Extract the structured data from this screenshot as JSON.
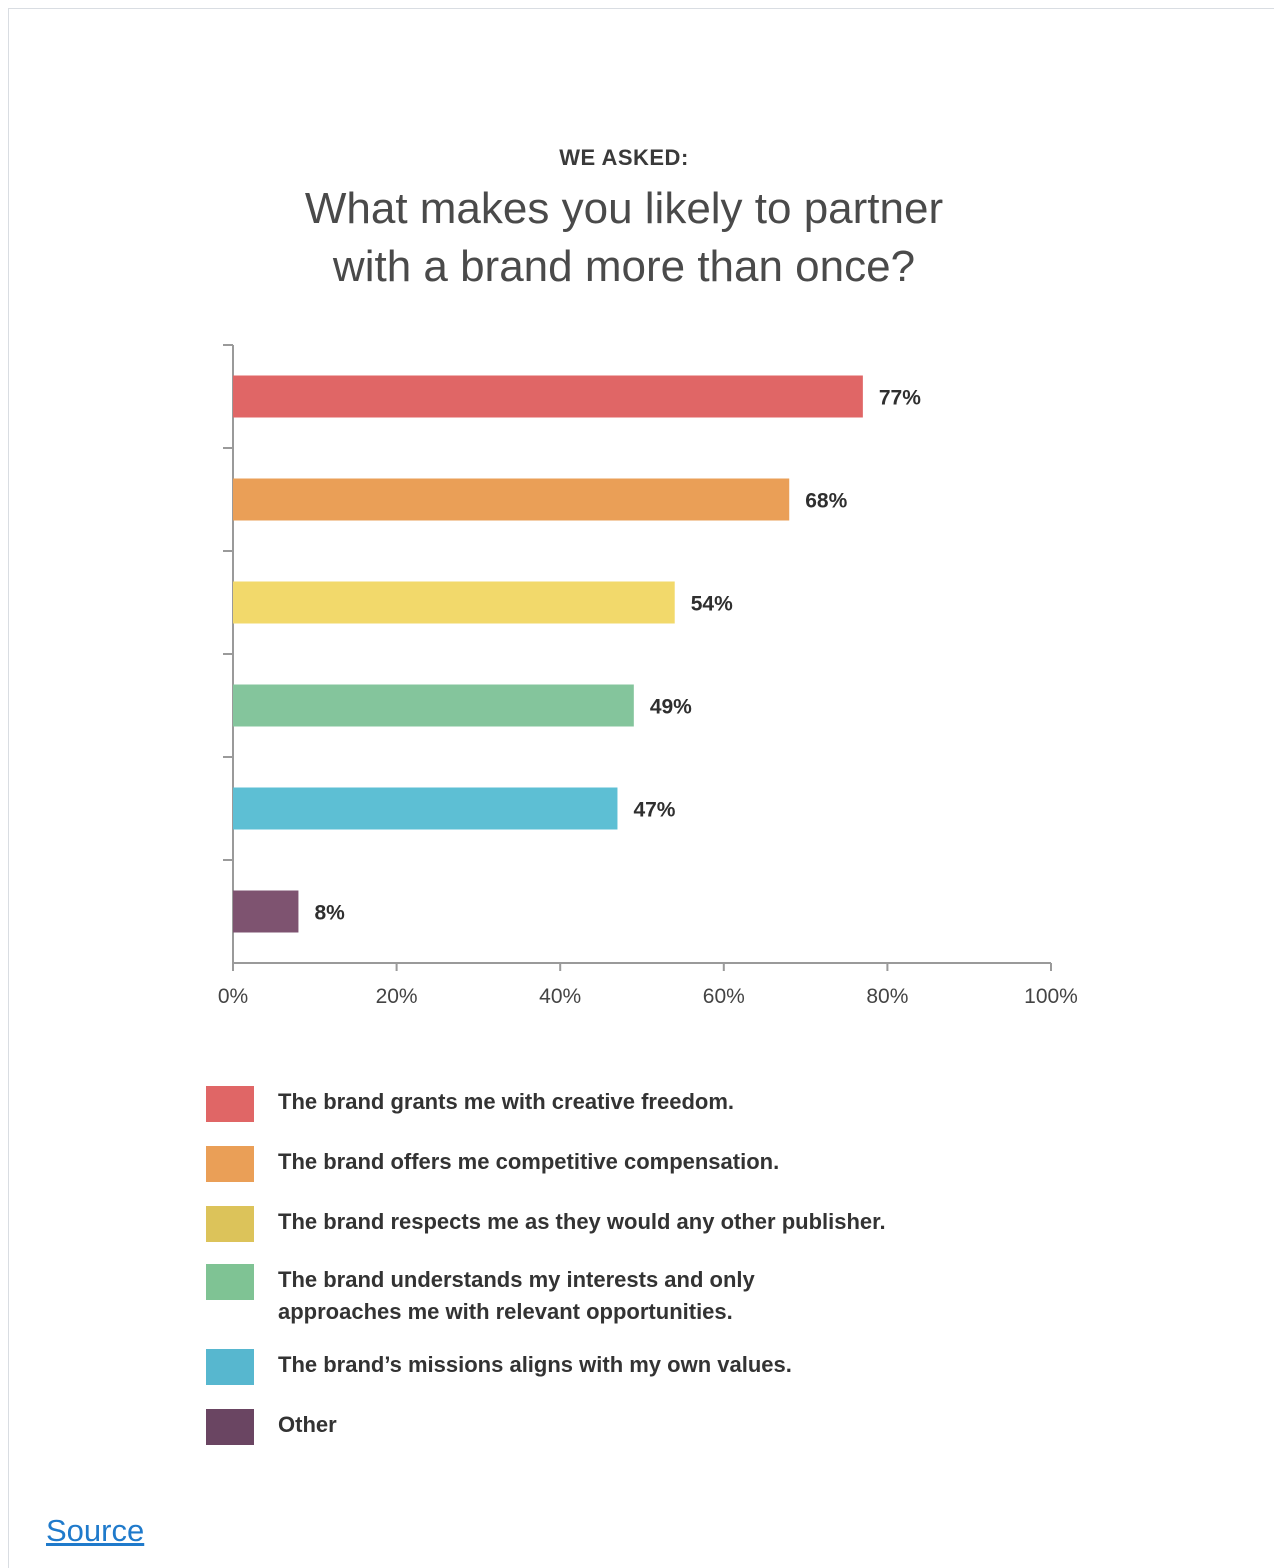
{
  "header": {
    "kicker": "WE ASKED:",
    "title_line1": "What makes you likely to partner",
    "title_line2": "with a brand more than once?"
  },
  "chart_data": {
    "type": "bar",
    "orientation": "horizontal",
    "title": "What makes you likely to partner with a brand more than once?",
    "categories": [
      "The brand grants me with creative freedom.",
      "The brand offers me competitive compensation.",
      "The brand respects me as they would any other publisher.",
      "The brand understands my interests and only approaches me with relevant opportunities.",
      "The brand’s missions aligns with my own values.",
      "Other"
    ],
    "values": [
      77,
      68,
      54,
      49,
      47,
      8
    ],
    "value_labels": [
      "77%",
      "68%",
      "54%",
      "49%",
      "47%",
      "8%"
    ],
    "colors": [
      "#e06666",
      "#ea9f57",
      "#f2d96b",
      "#84c59c",
      "#5dbfd4",
      "#7e5370"
    ],
    "xlim": [
      0,
      100
    ],
    "xticks": [
      0,
      20,
      40,
      60,
      80,
      100
    ],
    "xtick_labels": [
      "0%",
      "20%",
      "40%",
      "60%",
      "80%",
      "100%"
    ],
    "grid": false,
    "legend_position": "bottom"
  },
  "legend": {
    "items": [
      {
        "line1": "The brand grants me with creative freedom.",
        "line2": "",
        "color": "#e06666"
      },
      {
        "line1": "The brand offers me competitive compensation.",
        "line2": "",
        "color": "#ea9f57"
      },
      {
        "line1": "The brand respects me as they would any other publisher.",
        "line2": "",
        "color": "#dcc35a"
      },
      {
        "line1": "The brand understands my interests and only",
        "line2": "approaches me with relevant opportunities.",
        "color": "#7fc394"
      },
      {
        "line1": "The brand’s missions aligns with my own values.",
        "line2": "",
        "color": "#57b7cf"
      },
      {
        "line1": "Other",
        "line2": "",
        "color": "#6a4562"
      }
    ]
  },
  "footer": {
    "source_link": "Source"
  }
}
